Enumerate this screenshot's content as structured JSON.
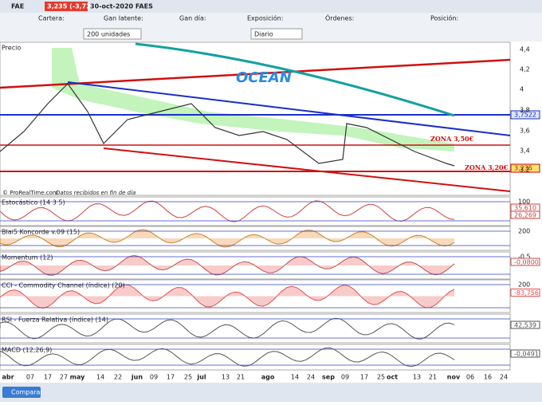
{
  "title_bar": {
    "symbol": "FAE",
    "change": "3,235 (-3,72%)",
    "date": "30-oct-2020 FAES"
  },
  "toolbar": {
    "fields": [
      "Cartera:",
      "Gan latente:",
      "Gan día:",
      "Exposición:",
      "Órdenes:",
      "Posición:"
    ],
    "quantity": "200 unidades",
    "period": "Diario"
  },
  "price_panel": {
    "label": "Precio",
    "axis": [
      "4,4",
      "4,2",
      "4",
      "3,8",
      "3,6",
      "3,4",
      "3,2"
    ],
    "annotations": {
      "ocean": "OCEAN",
      "zone_high": "ZONA 3,50€",
      "zone_low": "ZONA 3,20€",
      "last_high": "3,7522",
      "last": "3,235"
    },
    "footer": "© ProRealTime.com",
    "footer_note": "Datos recibidos en fin de día"
  },
  "indicators": [
    {
      "label": "Estocástico (14 3 5)",
      "axis": [
        "100"
      ],
      "values": [
        "35,610",
        "26,269"
      ]
    },
    {
      "label": "Blai5 Koncorde v.09 (15)",
      "axis": [
        "200"
      ],
      "values": []
    },
    {
      "label": "Momentum (12)",
      "axis": [
        "-0,5"
      ],
      "values": [
        "-0,0800"
      ]
    },
    {
      "label": "CCI - Commodity Channel (índice) (20)",
      "axis": [
        "200"
      ],
      "values": [
        "-83,756"
      ]
    },
    {
      "label": "RSI - Fuerza Relativa (índice) (14)",
      "axis": [],
      "values": [
        "42,539"
      ]
    },
    {
      "label": "MACD (12,26,9)",
      "axis": [],
      "values": [
        "-0,0491"
      ]
    }
  ],
  "x_axis": [
    "abr",
    "07",
    "17",
    "27",
    "may",
    "14",
    "22",
    "jun",
    "09",
    "17",
    "25",
    "jul",
    "13",
    "21",
    "ago",
    "14",
    "24",
    "sep",
    "09",
    "17",
    "25",
    "oct",
    "13",
    "21",
    "nov",
    "06",
    "16",
    "24"
  ],
  "bottom_bar": {
    "compare": "Comparar"
  }
}
